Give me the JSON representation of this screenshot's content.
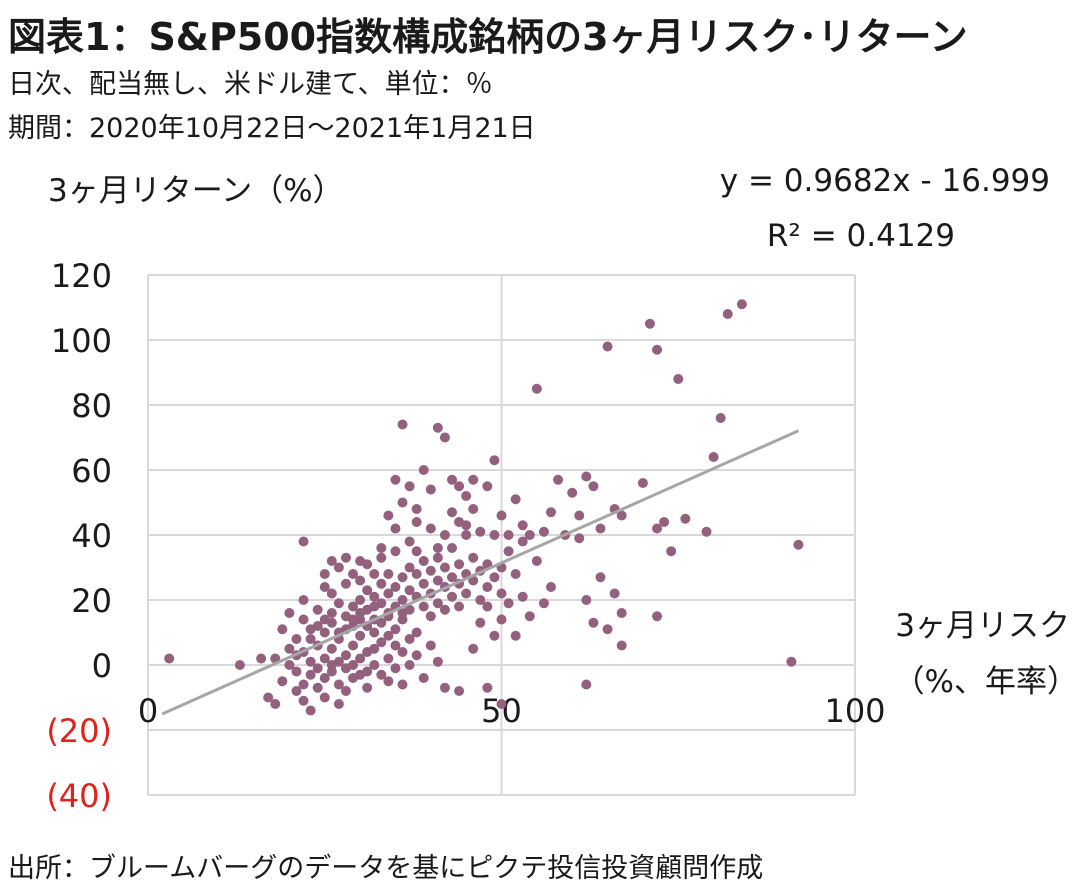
{
  "title": "図表1：S&P500指数構成銘柄の3ヶ月リスク･リターン",
  "subtitle_units": "日次、配当無し、米ドル建て、単位：％",
  "subtitle_period": "期間：2020年10月22日～2021年1月21日",
  "source": "出所：ブルームバーグのデータを基にピクテ投信投資顧問作成",
  "chart_data": {
    "type": "scatter",
    "xlabel": [
      "3ヶ月リスク",
      "（%、年率）"
    ],
    "ylabel": "3ヶ月リターン（%）",
    "xlim": [
      0,
      100
    ],
    "ylim": [
      -40,
      120
    ],
    "x_ticks": [
      0,
      50,
      100
    ],
    "y_ticks": [
      -40,
      -20,
      0,
      20,
      40,
      60,
      80,
      100,
      120
    ],
    "y_tick_labels": [
      "(40)",
      "(20)",
      "0",
      "20",
      "40",
      "60",
      "80",
      "100",
      "120"
    ],
    "negative_label_color": "#e0211c",
    "grid": true,
    "point_color": "#93607e",
    "trend_color": "#a6a6a6",
    "grid_color": "#d9d9d9",
    "trendline": {
      "slope": 0.9682,
      "intercept": -16.999,
      "x_range": [
        2,
        92
      ],
      "equation": "y = 0.9682x - 16.999",
      "r2": "R² = 0.4129"
    },
    "points": [
      [
        3,
        2
      ],
      [
        13,
        0
      ],
      [
        16,
        2
      ],
      [
        18,
        2
      ],
      [
        17,
        -10
      ],
      [
        18,
        -12
      ],
      [
        19,
        -5
      ],
      [
        20,
        0
      ],
      [
        20,
        5
      ],
      [
        21,
        -2
      ],
      [
        21,
        -8
      ],
      [
        21,
        3
      ],
      [
        22,
        -6
      ],
      [
        22,
        -11
      ],
      [
        22,
        4
      ],
      [
        23,
        1
      ],
      [
        23,
        -3
      ],
      [
        23,
        8
      ],
      [
        23,
        -14
      ],
      [
        24,
        -1
      ],
      [
        24,
        6
      ],
      [
        24,
        -7
      ],
      [
        25,
        2
      ],
      [
        25,
        -4
      ],
      [
        25,
        10
      ],
      [
        25,
        -10
      ],
      [
        26,
        0
      ],
      [
        26,
        5
      ],
      [
        26,
        -2
      ],
      [
        26,
        13
      ],
      [
        27,
        1
      ],
      [
        27,
        -6
      ],
      [
        27,
        8
      ],
      [
        27,
        -12
      ],
      [
        28,
        3
      ],
      [
        28,
        -1
      ],
      [
        28,
        11
      ],
      [
        28,
        -8
      ],
      [
        29,
        6
      ],
      [
        29,
        0
      ],
      [
        29,
        14
      ],
      [
        29,
        -4
      ],
      [
        30,
        2
      ],
      [
        30,
        9
      ],
      [
        30,
        -3
      ],
      [
        30,
        16
      ],
      [
        31,
        4
      ],
      [
        31,
        -2
      ],
      [
        31,
        12
      ],
      [
        31,
        -7
      ],
      [
        32,
        5
      ],
      [
        32,
        0
      ],
      [
        32,
        10
      ],
      [
        32,
        18
      ],
      [
        33,
        7
      ],
      [
        33,
        -3
      ],
      [
        33,
        13
      ],
      [
        34,
        2
      ],
      [
        34,
        9
      ],
      [
        34,
        -5
      ],
      [
        34,
        16
      ],
      [
        35,
        6
      ],
      [
        35,
        -1
      ],
      [
        35,
        11
      ],
      [
        36,
        4
      ],
      [
        36,
        14
      ],
      [
        36,
        -6
      ],
      [
        37,
        8
      ],
      [
        37,
        0
      ],
      [
        38,
        3
      ],
      [
        38,
        10
      ],
      [
        39,
        -4
      ],
      [
        40,
        6
      ],
      [
        41,
        1
      ],
      [
        42,
        -7
      ],
      [
        44,
        -8
      ],
      [
        19,
        11
      ],
      [
        20,
        16
      ],
      [
        21,
        8
      ],
      [
        22,
        14
      ],
      [
        22,
        20
      ],
      [
        23,
        11
      ],
      [
        24,
        17
      ],
      [
        24,
        12
      ],
      [
        25,
        14
      ],
      [
        25,
        24
      ],
      [
        26,
        16
      ],
      [
        26,
        22
      ],
      [
        27,
        10
      ],
      [
        27,
        19
      ],
      [
        28,
        15
      ],
      [
        28,
        25
      ],
      [
        29,
        18
      ],
      [
        29,
        12
      ],
      [
        29,
        28
      ],
      [
        30,
        20
      ],
      [
        30,
        14
      ],
      [
        30,
        26
      ],
      [
        31,
        17
      ],
      [
        31,
        23
      ],
      [
        31,
        31
      ],
      [
        32,
        14
      ],
      [
        32,
        21
      ],
      [
        32,
        28
      ],
      [
        33,
        19
      ],
      [
        33,
        25
      ],
      [
        33,
        33
      ],
      [
        34,
        22
      ],
      [
        34,
        15
      ],
      [
        34,
        28
      ],
      [
        35,
        18
      ],
      [
        35,
        24
      ],
      [
        35,
        35
      ],
      [
        36,
        20
      ],
      [
        36,
        27
      ],
      [
        36,
        16
      ],
      [
        37,
        23
      ],
      [
        37,
        30
      ],
      [
        37,
        17
      ],
      [
        38,
        21
      ],
      [
        38,
        28
      ],
      [
        38,
        35
      ],
      [
        39,
        25
      ],
      [
        39,
        18
      ],
      [
        39,
        32
      ],
      [
        40,
        22
      ],
      [
        40,
        29
      ],
      [
        40,
        15
      ],
      [
        41,
        26
      ],
      [
        41,
        33
      ],
      [
        41,
        19
      ],
      [
        42,
        24
      ],
      [
        42,
        30
      ],
      [
        42,
        17
      ],
      [
        43,
        27
      ],
      [
        43,
        21
      ],
      [
        43,
        36
      ],
      [
        44,
        25
      ],
      [
        44,
        31
      ],
      [
        44,
        18
      ],
      [
        45,
        28
      ],
      [
        45,
        22
      ],
      [
        45,
        40
      ],
      [
        46,
        26
      ],
      [
        46,
        33
      ],
      [
        47,
        29
      ],
      [
        47,
        20
      ],
      [
        48,
        31
      ],
      [
        48,
        24
      ],
      [
        49,
        27
      ],
      [
        50,
        30
      ],
      [
        50,
        22
      ],
      [
        51,
        35
      ],
      [
        52,
        28
      ],
      [
        53,
        38
      ],
      [
        55,
        32
      ],
      [
        22,
        38
      ],
      [
        25,
        28
      ],
      [
        26,
        32
      ],
      [
        27,
        30
      ],
      [
        28,
        33
      ],
      [
        30,
        32
      ],
      [
        33,
        36
      ],
      [
        34,
        46
      ],
      [
        35,
        42
      ],
      [
        35,
        57
      ],
      [
        36,
        50
      ],
      [
        36,
        74
      ],
      [
        37,
        38
      ],
      [
        37,
        55
      ],
      [
        38,
        44
      ],
      [
        38,
        48
      ],
      [
        39,
        60
      ],
      [
        40,
        42
      ],
      [
        40,
        54
      ],
      [
        41,
        36
      ],
      [
        41,
        73
      ],
      [
        42,
        70
      ],
      [
        42,
        40
      ],
      [
        43,
        47
      ],
      [
        43,
        57
      ],
      [
        44,
        44
      ],
      [
        44,
        55
      ],
      [
        45,
        43
      ],
      [
        45,
        52
      ],
      [
        46,
        48
      ],
      [
        46,
        57
      ],
      [
        47,
        41
      ],
      [
        48,
        55
      ],
      [
        49,
        63
      ],
      [
        49,
        40
      ],
      [
        50,
        46
      ],
      [
        51,
        40
      ],
      [
        52,
        51
      ],
      [
        53,
        43
      ],
      [
        54,
        40
      ],
      [
        55,
        85
      ],
      [
        56,
        41
      ],
      [
        57,
        47
      ],
      [
        58,
        57
      ],
      [
        59,
        40
      ],
      [
        60,
        53
      ],
      [
        61,
        39
      ],
      [
        61,
        46
      ],
      [
        62,
        58
      ],
      [
        63,
        55
      ],
      [
        64,
        42
      ],
      [
        65,
        98
      ],
      [
        66,
        48
      ],
      [
        67,
        46
      ],
      [
        70,
        56
      ],
      [
        71,
        105
      ],
      [
        72,
        97
      ],
      [
        72,
        42
      ],
      [
        73,
        44
      ],
      [
        74,
        35
      ],
      [
        75,
        88
      ],
      [
        76,
        45
      ],
      [
        79,
        41
      ],
      [
        80,
        64
      ],
      [
        81,
        76
      ],
      [
        82,
        108
      ],
      [
        84,
        111
      ],
      [
        92,
        37
      ],
      [
        91,
        1
      ],
      [
        62,
        20
      ],
      [
        63,
        13
      ],
      [
        64,
        27
      ],
      [
        65,
        11
      ],
      [
        66,
        22
      ],
      [
        67,
        16
      ],
      [
        67,
        6
      ],
      [
        72,
        15
      ],
      [
        62,
        -6
      ],
      [
        50,
        -12
      ],
      [
        48,
        -7
      ],
      [
        46,
        5
      ],
      [
        47,
        13
      ],
      [
        48,
        18
      ],
      [
        49,
        9
      ],
      [
        50,
        14
      ],
      [
        51,
        19
      ],
      [
        52,
        9
      ],
      [
        53,
        21
      ],
      [
        54,
        15
      ],
      [
        56,
        19
      ],
      [
        57,
        24
      ]
    ]
  }
}
